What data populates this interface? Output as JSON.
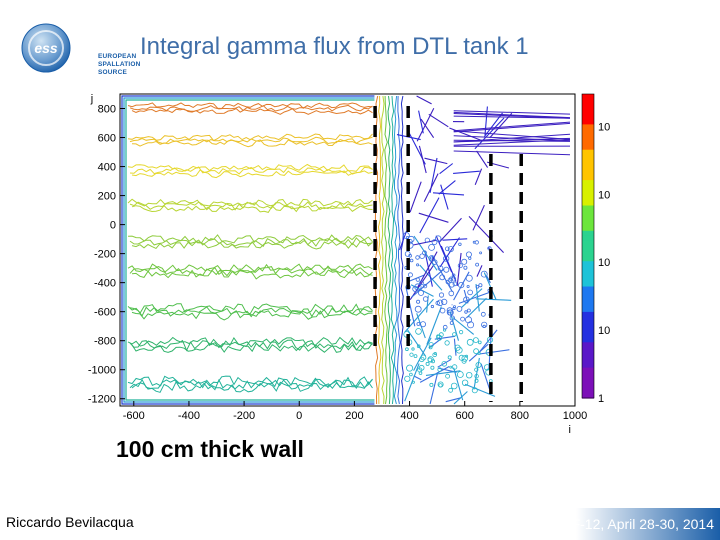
{
  "slide": {
    "title": "Integral gamma flux from DTL tank 1",
    "caption": "100 cm thick wall",
    "author": "Riccardo Bevilacqua",
    "conference": "SATIF-12, April 28-30, 2014"
  },
  "logo": {
    "mark": "ess",
    "text_lines": [
      "EUROPEAN",
      "SPALLATION",
      "SOURCE"
    ]
  },
  "colors": {
    "title": "#3f6ea8",
    "logo_blue": "#1a5ea8",
    "footer_gradient_start": "#ffffff",
    "footer_gradient_end": "#1a5ea8",
    "wall_marker": "#000000"
  },
  "chart_data": {
    "type": "heatmap",
    "subtype": "contour",
    "title": "Integral gamma flux from DTL tank 1",
    "xlabel": "i",
    "ylabel": "j",
    "xlim": [
      -650,
      1000
    ],
    "ylim": [
      -1250,
      900
    ],
    "x_ticks": [
      -600,
      -400,
      -200,
      0,
      200,
      400,
      600,
      800,
      1000
    ],
    "y_ticks": [
      800,
      600,
      400,
      200,
      0,
      -200,
      -400,
      -600,
      -800,
      -1000,
      -1200
    ],
    "colorbar": {
      "scale": "log",
      "range": [
        1,
        30000
      ],
      "tick_values": [
        10000,
        1000,
        100,
        10,
        1
      ],
      "tick_labels": [
        "10^4",
        "10^3",
        "10^2",
        "10",
        "1"
      ]
    },
    "contour_levels": [
      {
        "y": 800,
        "color": "#e07b2a",
        "flux": 8000
      },
      {
        "y": 580,
        "color": "#ebc12a",
        "flux": 3000
      },
      {
        "y": 370,
        "color": "#e6d830",
        "flux": 1500
      },
      {
        "y": 130,
        "color": "#b8d534",
        "flux": 600
      },
      {
        "y": -120,
        "color": "#8fcc3e",
        "flux": 250
      },
      {
        "y": -320,
        "color": "#6ec53f",
        "flux": 100
      },
      {
        "y": -600,
        "color": "#4ebe4c",
        "flux": 40
      },
      {
        "y": -830,
        "color": "#30b36b",
        "flux": 15
      },
      {
        "y": -1100,
        "color": "#22b29a",
        "flux": 5
      }
    ],
    "wall_region": {
      "x_start": 280,
      "x_end": 380
    },
    "wall_markers_x": [
      275,
      395,
      695,
      805
    ]
  }
}
